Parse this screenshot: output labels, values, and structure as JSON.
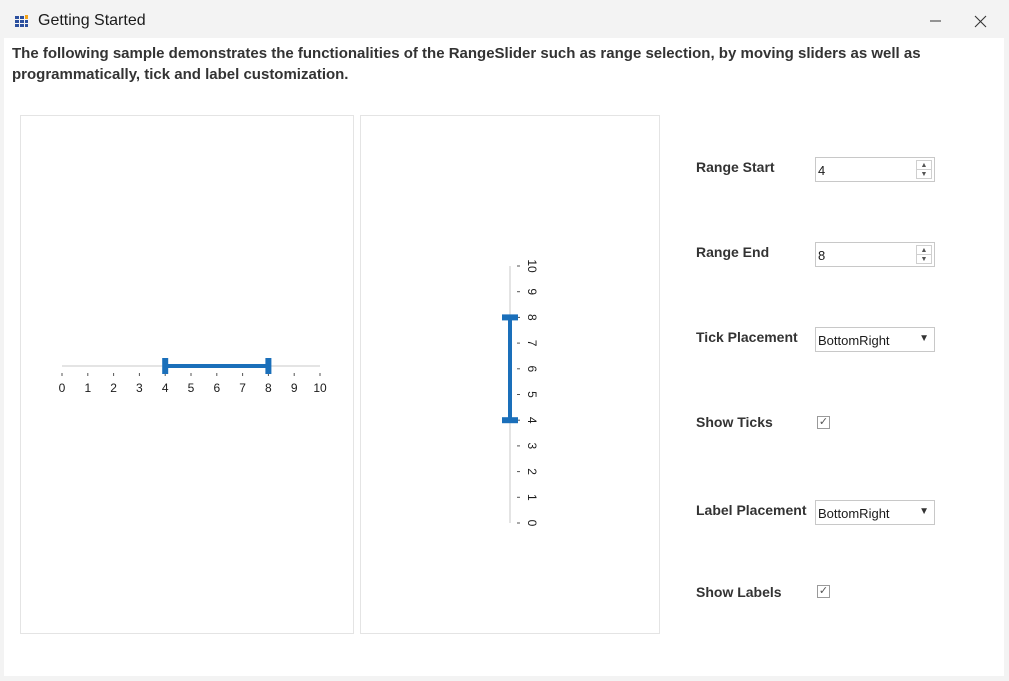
{
  "window": {
    "title": "Getting Started",
    "icon": "app-grid-icon",
    "minimize_icon": "minimize-icon",
    "close_icon": "close-icon"
  },
  "description": "The following sample demonstrates the functionalities of the RangeSlider such as range selection, by moving sliders as well as programmatically, tick and label customization.",
  "slider": {
    "min": 0,
    "max": 10,
    "range_start": 4,
    "range_end": 8,
    "accent_color": "#1a6fba",
    "track_color": "#c8c8c8",
    "labels": [
      "0",
      "1",
      "2",
      "3",
      "4",
      "5",
      "6",
      "7",
      "8",
      "9",
      "10"
    ]
  },
  "options": {
    "range_start": {
      "label": "Range Start",
      "value": "4"
    },
    "range_end": {
      "label": "Range End",
      "value": "8"
    },
    "tick_placement": {
      "label": "Tick Placement",
      "value": "BottomRight"
    },
    "show_ticks": {
      "label": "Show Ticks",
      "checked": true
    },
    "label_placement": {
      "label": "Label Placement",
      "value": "BottomRight"
    },
    "show_labels": {
      "label": "Show Labels",
      "checked": true
    }
  },
  "glyphs": {
    "spin_up": "▲",
    "spin_down": "▼",
    "dropdown": "▼",
    "check": "✓"
  }
}
